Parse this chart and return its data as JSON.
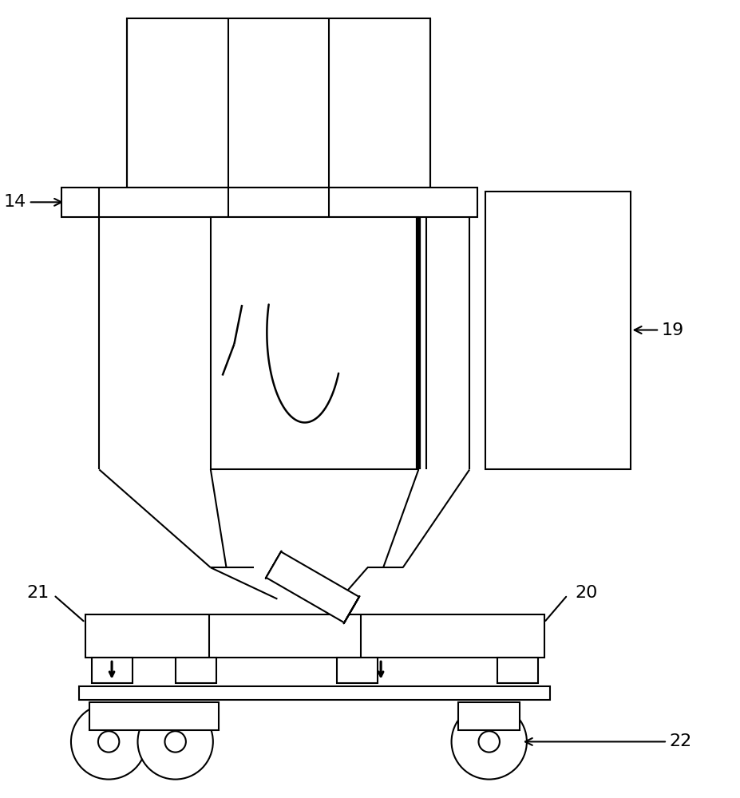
{
  "bg_color": "#ffffff",
  "line_color": "#000000",
  "line_width": 1.5
}
